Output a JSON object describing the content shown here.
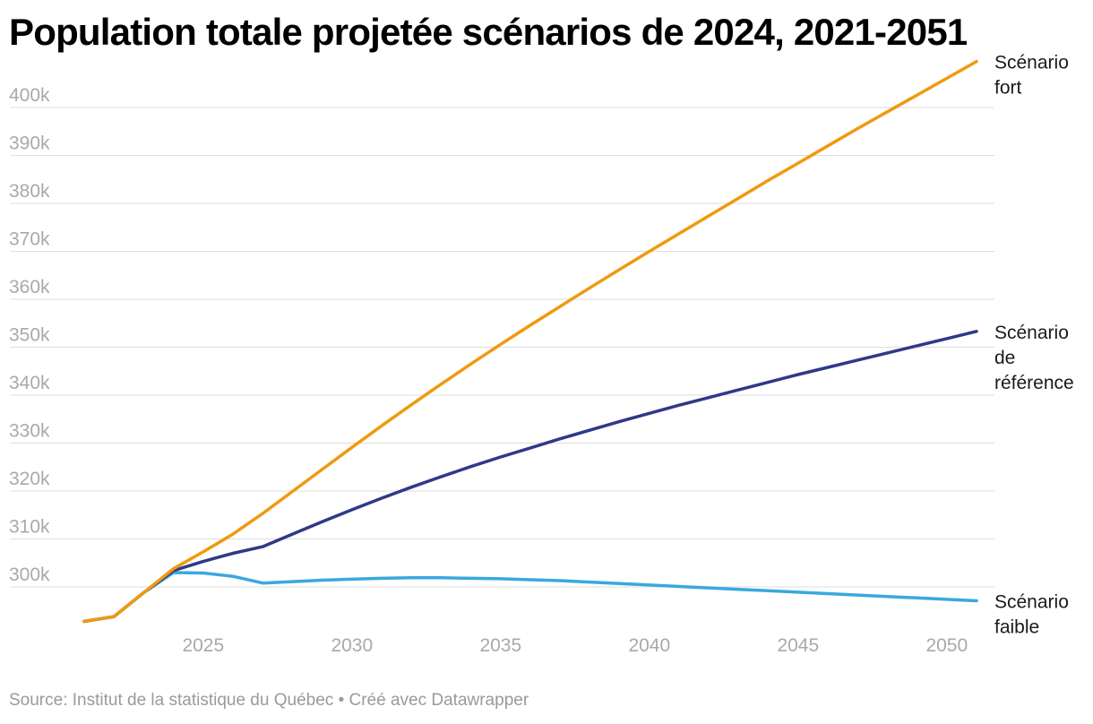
{
  "title": "Population totale projetée scénarios de 2024, 2021-2051",
  "footer": {
    "source": "Source: Institut de la statistique du Québec",
    "separator": "•",
    "created_with": "Créé avec Datawrapper"
  },
  "chart_data": {
    "type": "line",
    "title": "Population totale projetée scénarios de 2024, 2021-2051",
    "xlabel": "",
    "ylabel": "",
    "x_ticks": [
      2025,
      2030,
      2035,
      2040,
      2045,
      2050
    ],
    "y_ticks": [
      300000,
      310000,
      320000,
      330000,
      340000,
      350000,
      360000,
      370000,
      380000,
      390000,
      400000
    ],
    "y_tick_labels": [
      "300k",
      "310k",
      "320k",
      "330k",
      "340k",
      "350k",
      "360k",
      "370k",
      "380k",
      "390k",
      "400k"
    ],
    "xlim": [
      2021,
      2051
    ],
    "ylim": [
      293000,
      405000
    ],
    "grid": true,
    "legend": "direct labels at line ends (right)",
    "x": [
      2021,
      2022,
      2023,
      2024,
      2025,
      2026,
      2027,
      2028,
      2029,
      2030,
      2031,
      2032,
      2033,
      2034,
      2035,
      2036,
      2037,
      2038,
      2039,
      2040,
      2041,
      2042,
      2043,
      2044,
      2045,
      2046,
      2047,
      2048,
      2049,
      2050,
      2051
    ],
    "series": [
      {
        "name": "Scénario fort",
        "label_lines": [
          "Scénario",
          "fort"
        ],
        "color": "#ef9a0e",
        "values": [
          292800,
          293800,
          298800,
          303800,
          307300,
          311000,
          315300,
          319900,
          324500,
          329100,
          333600,
          338000,
          342300,
          346500,
          350600,
          354600,
          358500,
          362400,
          366200,
          370000,
          373700,
          377400,
          381100,
          384800,
          388400,
          392000,
          395600,
          399100,
          402600,
          406100,
          409600
        ]
      },
      {
        "name": "Scénario de référence",
        "label_lines": [
          "Scénario",
          "de",
          "référence"
        ],
        "color": "#2e3a87",
        "values": [
          292800,
          293800,
          298800,
          303400,
          305300,
          307000,
          308400,
          311000,
          313600,
          316100,
          318500,
          320800,
          323000,
          325100,
          327100,
          329000,
          330900,
          332700,
          334500,
          336200,
          337900,
          339500,
          341100,
          342700,
          344300,
          345800,
          347300,
          348800,
          350300,
          351800,
          353300
        ]
      },
      {
        "name": "Scénario faible",
        "label_lines": [
          "Scénario",
          "faible"
        ],
        "color": "#3aa8e0",
        "values": [
          292800,
          293800,
          298800,
          303000,
          302900,
          302200,
          300800,
          301100,
          301400,
          301600,
          301800,
          301900,
          301900,
          301800,
          301700,
          301500,
          301300,
          301000,
          300700,
          300400,
          300100,
          299800,
          299500,
          299200,
          298900,
          298600,
          298300,
          298000,
          297700,
          297400,
          297100
        ]
      }
    ]
  }
}
